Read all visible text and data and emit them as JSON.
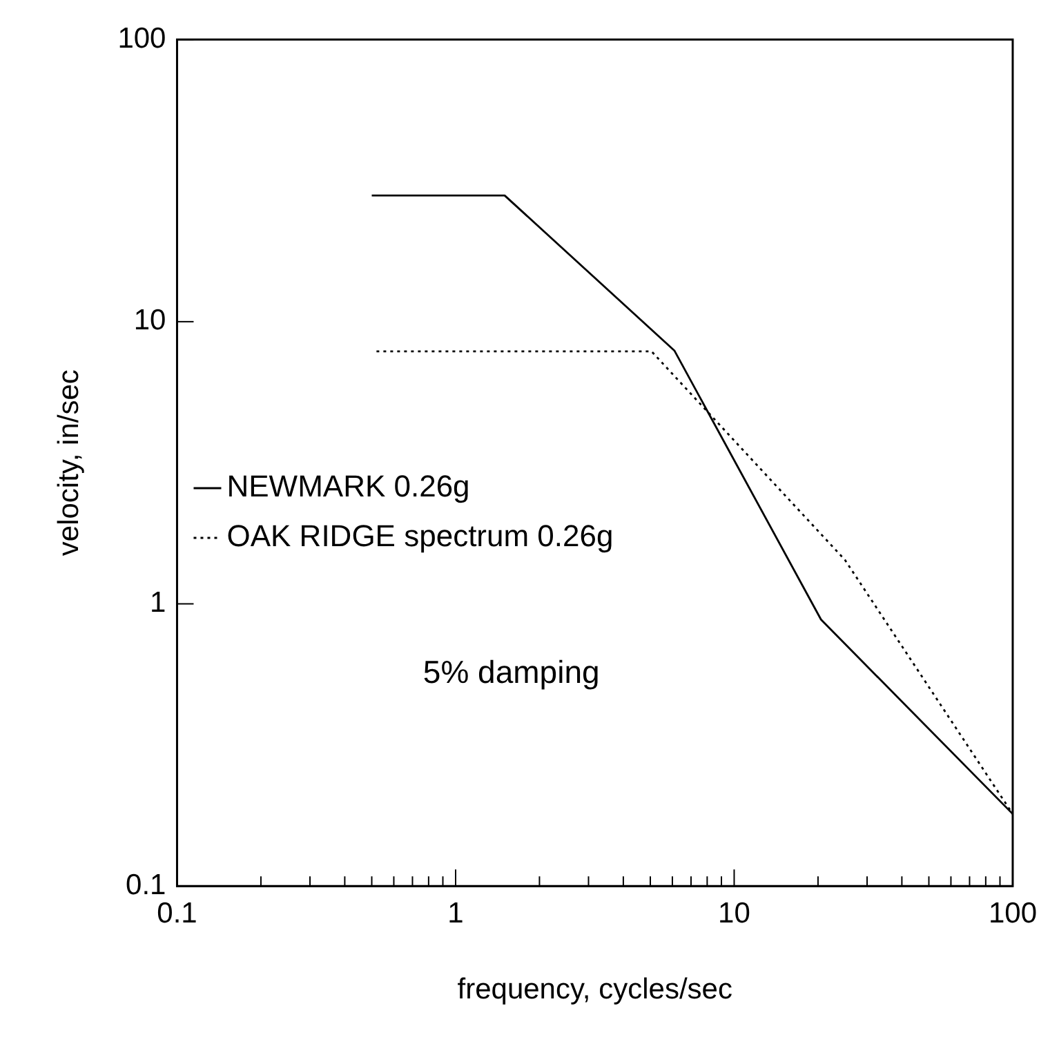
{
  "chart_data": {
    "type": "line",
    "xlabel": "frequency, cycles/sec",
    "ylabel": "velocity, in/sec",
    "log": "xy",
    "grid": false,
    "legend": "left",
    "marker": "none",
    "xlim": [
      0.1,
      100
    ],
    "ylim": [
      0.1,
      100
    ],
    "xticks": [
      0.1,
      {
        "value": 0.2,
        "label": null
      },
      {
        "value": 0.3,
        "label": null
      },
      {
        "value": 0.4,
        "label": null
      },
      {
        "value": 0.5,
        "label": null
      },
      {
        "value": 0.6,
        "label": null
      },
      {
        "value": 0.7,
        "label": null
      },
      {
        "value": 0.8,
        "label": null
      },
      {
        "value": 0.9,
        "label": null
      },
      1,
      {
        "value": 2,
        "label": null
      },
      {
        "value": 3,
        "label": null
      },
      {
        "value": 4,
        "label": null
      },
      {
        "value": 5,
        "label": null
      },
      {
        "value": 6,
        "label": null
      },
      {
        "value": 7,
        "label": null
      },
      {
        "value": 8,
        "label": null
      },
      {
        "value": 9,
        "label": null
      },
      10,
      {
        "value": 20,
        "label": null
      },
      {
        "value": 30,
        "label": null
      },
      {
        "value": 40,
        "label": null
      },
      {
        "value": 50,
        "label": null
      },
      {
        "value": 60,
        "label": null
      },
      {
        "value": 70,
        "label": null
      },
      {
        "value": 80,
        "label": null
      },
      {
        "value": 90,
        "label": null
      },
      100
    ],
    "yticks": [
      0.1,
      1,
      10,
      100
    ],
    "series": [
      {
        "name": "NEWMARK 0.26g",
        "color": "#000000",
        "line_style": "solid",
        "x": [
          0.5,
          1.5,
          6.1,
          20.5,
          100
        ],
        "values": [
          28,
          28,
          7.9,
          0.88,
          0.18
        ]
      },
      {
        "name": "OAK RIDGE spectrum 0.26g",
        "color": "#000000",
        "line_style": "dotted",
        "x": [
          0.52,
          5.05,
          25,
          100
        ],
        "values": [
          7.85,
          7.85,
          1.43,
          0.18
        ]
      }
    ],
    "annotations": [
      "5% damping"
    ]
  }
}
